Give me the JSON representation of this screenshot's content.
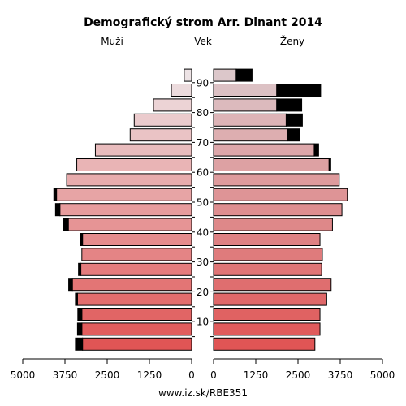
{
  "chart_data": {
    "type": "bar",
    "title": "Demografický strom Arr. Dinant 2014",
    "left_label": "Muži",
    "center_label": "Vek",
    "right_label": "Ženy",
    "footer": "www.iz.sk/RBE351",
    "xlim": [
      0,
      5000
    ],
    "x_ticks": [
      "5000",
      "3750",
      "2500",
      "1250",
      "0",
      "0",
      "1250",
      "2500",
      "3750",
      "5000"
    ],
    "x_tick_values": [
      5000,
      3750,
      2500,
      1250,
      0,
      0,
      1250,
      2500,
      3750,
      5000
    ],
    "age_ticks": [
      "10",
      "20",
      "30",
      "40",
      "50",
      "60",
      "70",
      "80",
      "90"
    ],
    "age_tick_values": [
      10,
      20,
      30,
      40,
      50,
      60,
      70,
      80,
      90
    ],
    "bar_groups": [
      "0-4",
      "5-9",
      "10-14",
      "15-19",
      "20-24",
      "25-29",
      "30-34",
      "35-39",
      "40-44",
      "45-49",
      "50-54",
      "55-59",
      "60-64",
      "65-69",
      "70-74",
      "75-79",
      "80-84",
      "85-89",
      "90-94"
    ],
    "colors": {
      "male_young": "#e05555",
      "male_old": "#ede3e5",
      "female_young": "#e05555",
      "female_old": "#dcc7ca",
      "surplus": "#000000"
    },
    "series": [
      {
        "name": "Muži",
        "values": [
          3230,
          3250,
          3250,
          3380,
          3530,
          3280,
          3250,
          3230,
          3650,
          3900,
          4000,
          3700,
          3400,
          2850,
          1820,
          1700,
          1130,
          600,
          220
        ],
        "surplus": [
          210,
          130,
          120,
          60,
          110,
          70,
          0,
          60,
          150,
          130,
          80,
          0,
          0,
          0,
          0,
          0,
          0,
          0,
          0
        ]
      },
      {
        "name": "Ženy",
        "values": [
          3000,
          3150,
          3150,
          3350,
          3480,
          3200,
          3220,
          3150,
          3520,
          3800,
          3960,
          3720,
          3420,
          2980,
          2180,
          2150,
          1870,
          1870,
          670
        ],
        "surplus": [
          0,
          0,
          0,
          0,
          0,
          0,
          0,
          0,
          0,
          0,
          0,
          0,
          50,
          130,
          370,
          480,
          740,
          1300,
          470
        ]
      }
    ]
  }
}
